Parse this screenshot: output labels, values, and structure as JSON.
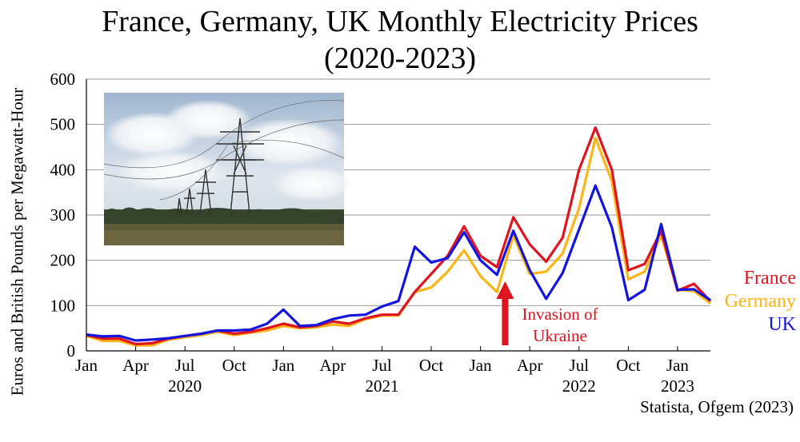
{
  "chart_data": {
    "type": "line",
    "title_line1": "France, Germany, UK Monthly Electricity Prices",
    "title_line2": "(2020-2023)",
    "ylabel": "Euros and British Pounds per Megawatt-Hour",
    "ylim": [
      0,
      600
    ],
    "yticks": [
      "0",
      "100",
      "200",
      "300",
      "400",
      "500",
      "600"
    ],
    "xticks": [
      {
        "label": "Jan",
        "i": 0
      },
      {
        "label": "Apr",
        "i": 3
      },
      {
        "label": "Jul",
        "i": 6
      },
      {
        "label": "Oct",
        "i": 9
      },
      {
        "label": "Jan",
        "i": 12
      },
      {
        "label": "Apr",
        "i": 15
      },
      {
        "label": "Jul",
        "i": 18
      },
      {
        "label": "Oct",
        "i": 21
      },
      {
        "label": "Jan",
        "i": 24
      },
      {
        "label": "Apr",
        "i": 27
      },
      {
        "label": "Jul",
        "i": 30
      },
      {
        "label": "Oct",
        "i": 33
      },
      {
        "label": "Jan",
        "i": 36
      }
    ],
    "years": [
      {
        "label": "2020",
        "i": 6
      },
      {
        "label": "2021",
        "i": 18
      },
      {
        "label": "2022",
        "i": 30
      },
      {
        "label": "2023",
        "i": 36
      }
    ],
    "grid": true,
    "series": [
      {
        "name": "France",
        "color": "#e0141e",
        "values": [
          35,
          27,
          27,
          15,
          17,
          27,
          33,
          38,
          45,
          38,
          42,
          50,
          60,
          52,
          55,
          65,
          60,
          72,
          80,
          80,
          130,
          170,
          210,
          275,
          210,
          185,
          295,
          235,
          197,
          250,
          400,
          493,
          400,
          178,
          192,
          265,
          133,
          148,
          110
        ]
      },
      {
        "name": "Germany",
        "color": "#fbb615",
        "values": [
          33,
          22,
          22,
          12,
          12,
          25,
          30,
          35,
          42,
          35,
          40,
          45,
          55,
          50,
          52,
          58,
          55,
          70,
          78,
          78,
          130,
          140,
          175,
          222,
          165,
          130,
          255,
          170,
          175,
          215,
          315,
          470,
          375,
          158,
          175,
          255,
          135,
          132,
          105
        ]
      },
      {
        "name": "UK",
        "color": "#1414e0",
        "values": [
          36,
          32,
          33,
          23,
          25,
          28,
          33,
          38,
          45,
          45,
          47,
          60,
          91,
          55,
          57,
          70,
          78,
          80,
          98,
          110,
          230,
          195,
          205,
          262,
          200,
          168,
          265,
          178,
          115,
          172,
          268,
          365,
          273,
          112,
          135,
          280,
          135,
          136,
          112
        ]
      }
    ],
    "annotation": {
      "text_line1": "Invasion of",
      "text_line2": "Ukraine",
      "color": "#e0141e",
      "x_index": 25.5
    },
    "legend_placement": "right"
  },
  "source": "Statista, Ofgem (2023)",
  "photo": {
    "subject": "electricity-pylons-photo"
  }
}
